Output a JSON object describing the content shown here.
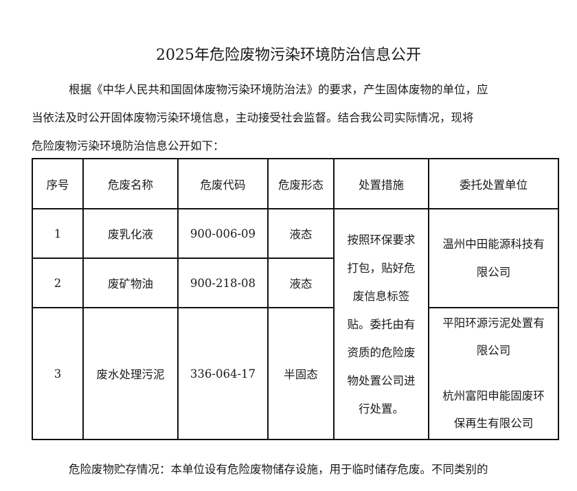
{
  "title": "2025年危险废物污染环境防治信息公开",
  "intro_lines": [
    "根据《中华人民共和国固体废物污染环境防治法》的要求，产生固体废物的单位，应",
    "当依法及时公开固体废物污染环境信息，主动接受社会监督。结合我公司实际情况，现将",
    "危险废物污染环境防治信息公开如下："
  ],
  "table": {
    "headers": [
      "序号",
      "危废名称",
      "危废代码",
      "危废形态",
      "处置措施",
      "委托处置单位"
    ],
    "rows": [
      {
        "no": "1",
        "name": "废乳化液",
        "code": "900-006-09",
        "form": "液态"
      },
      {
        "no": "2",
        "name": "废矿物油",
        "code": "900-218-08",
        "form": "液态"
      },
      {
        "no": "3",
        "name": "废水处理污泥",
        "code": "336-064-17",
        "form": "半固态"
      }
    ],
    "measure_lines": [
      "按照环保要求",
      "打包，贴好危",
      "废信息标签",
      "贴。委托由有",
      "资质的危险废",
      "物处置公司进",
      "行处置。"
    ],
    "unit_a_lines": [
      "温州中田能源科技有",
      "限公司"
    ],
    "unit_b_lines": [
      "平阳环源污泥处置有",
      "限公司"
    ],
    "unit_c_lines": [
      "杭州富阳申能固废环",
      "保再生有限公司"
    ]
  },
  "footer_text": "危险废物贮存情况：本单位设有危险废物储存设施，用于临时储存危废。不同类别的"
}
